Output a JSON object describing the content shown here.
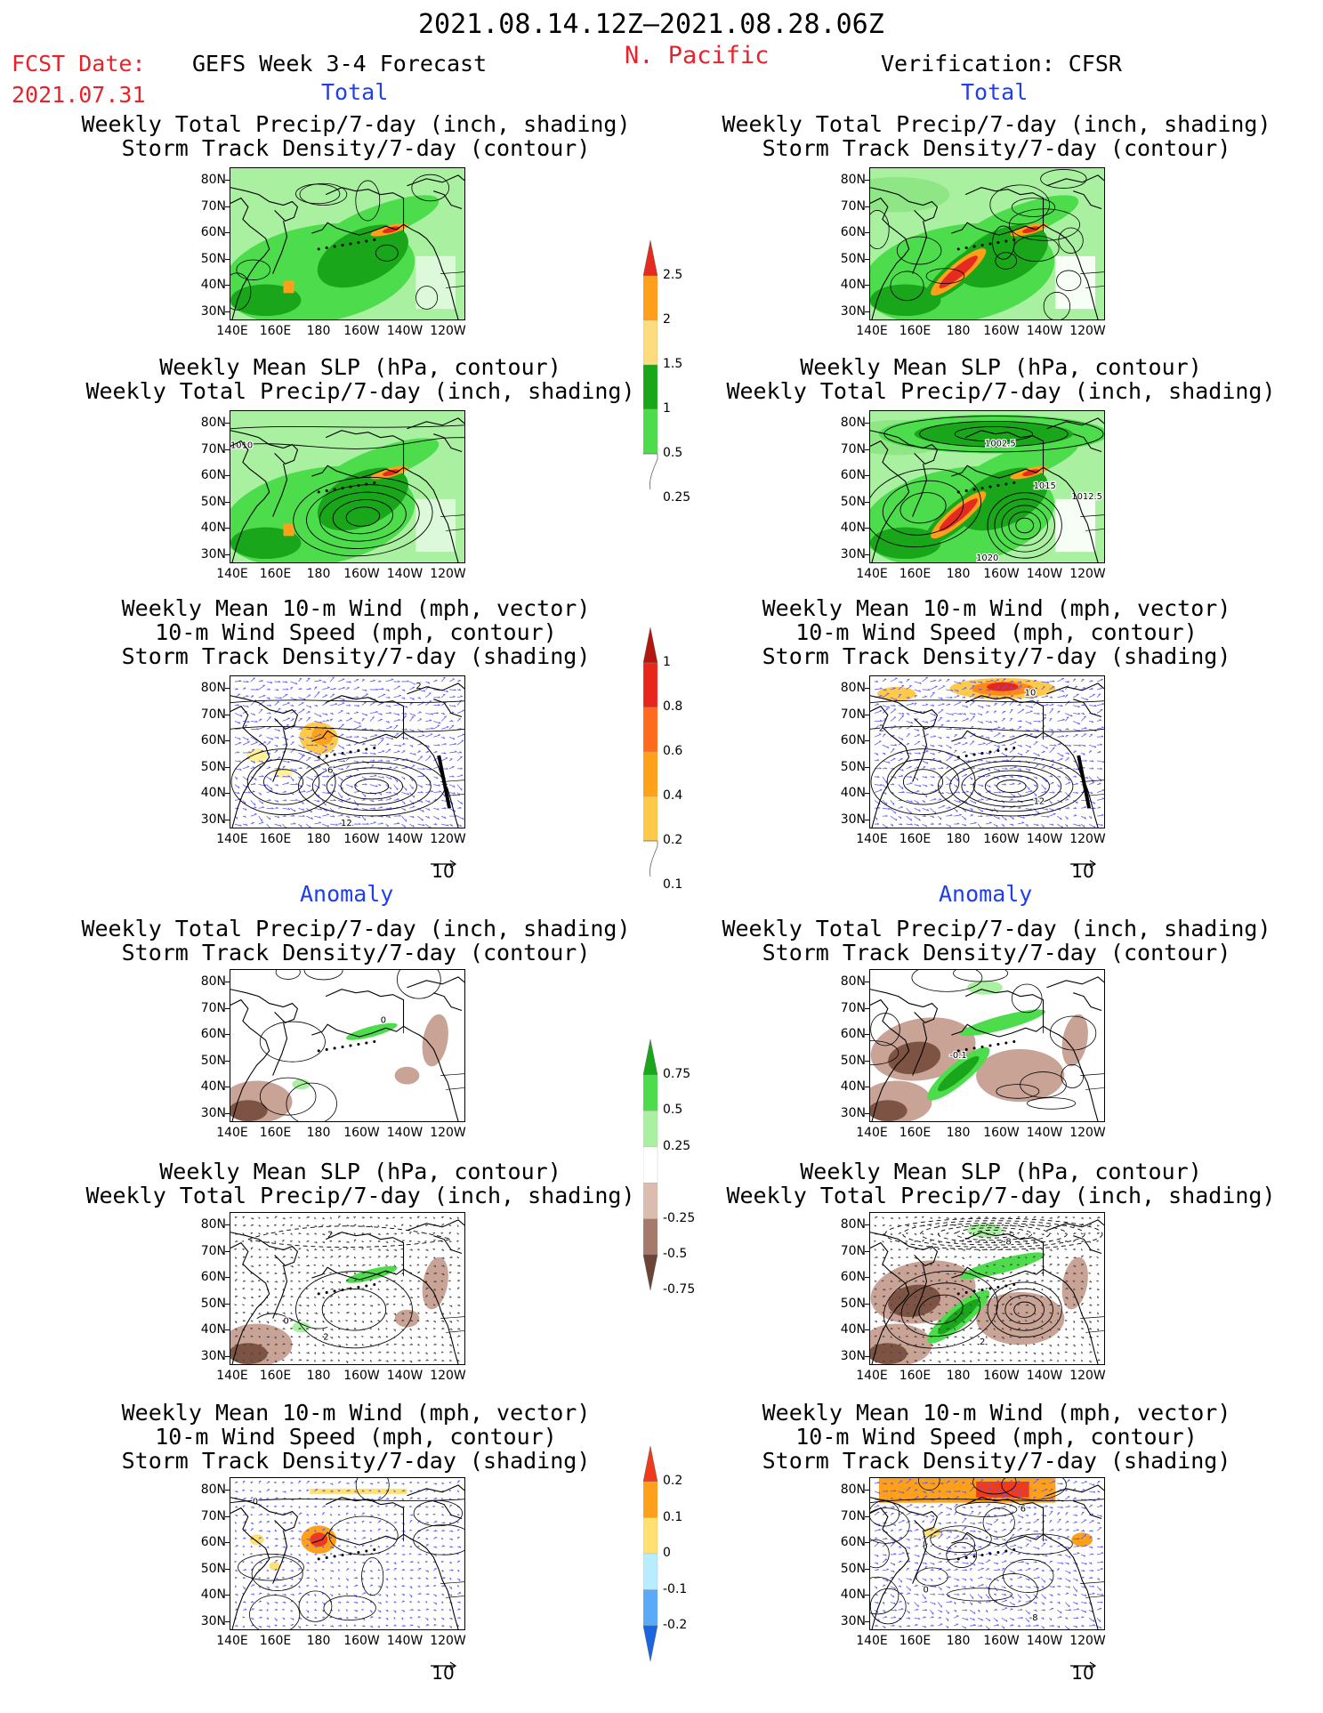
{
  "header": {
    "period": "2021.08.14.12Z–2021.08.28.06Z",
    "region": "N. Pacific",
    "fcst_label": "FCST Date:",
    "fcst_date": "2021.07.31",
    "left_title": "GEFS Week 3-4 Forecast",
    "right_title": "Verification: CFSR"
  },
  "sections": {
    "total": "Total",
    "anomaly": "Anomaly"
  },
  "rows": [
    {
      "title": "Weekly Total Precip/7-day (inch, shading)\nStorm Track Density/7-day (contour)",
      "kind": "precip"
    },
    {
      "title": "Weekly Mean SLP (hPa, contour)\nWeekly Total Precip/7-day (inch, shading)",
      "kind": "slp"
    },
    {
      "title": "Weekly Mean 10-m Wind (mph, vector)\n10-m Wind Speed (mph, contour)\nStorm Track Density/7-day (shading)",
      "kind": "wind"
    },
    {
      "title": "Weekly Total Precip/7-day (inch, shading)\nStorm Track Density/7-day (contour)",
      "kind": "precip_anom"
    },
    {
      "title": "Weekly Mean SLP (hPa, contour)\nWeekly Total Precip/7-day (inch, shading)",
      "kind": "slp_anom"
    },
    {
      "title": "Weekly Mean 10-m Wind (mph, vector)\n10-m Wind Speed (mph, contour)\nStorm Track Density/7-day (shading)",
      "kind": "wind_anom"
    }
  ],
  "axes": {
    "lat_ticks": [
      "80N",
      "70N",
      "60N",
      "50N",
      "40N",
      "30N"
    ],
    "lon_ticks": [
      "140E",
      "160E",
      "180",
      "160W",
      "140W",
      "120W"
    ]
  },
  "contour_labels": {
    "slp_left": [
      "1010"
    ],
    "slp_right": [
      "1002.5",
      "1015",
      "1012.5",
      "1020"
    ],
    "wind_left": [
      "2",
      "6",
      "12"
    ],
    "wind_right": [
      "10",
      "12",
      "2"
    ],
    "precip_anom_left": [
      "0"
    ],
    "precip_anom_right": [
      "-0.1"
    ],
    "slp_anom_left": [
      "2",
      "0",
      "2"
    ],
    "slp_anom_right": [
      "-8",
      "2"
    ],
    "wind_anom_left": [
      "0"
    ],
    "wind_anom_right": [
      "0",
      "6",
      "-8"
    ]
  },
  "vector_reference": "10",
  "colorbars": {
    "precip": {
      "labels": [
        "2.5",
        "2",
        "1.5",
        "1",
        "0.5",
        "0.25"
      ],
      "colors": [
        "#e52a1f",
        "#ff9f1a",
        "#fddc7d",
        "#1aa61a",
        "#4cdc4c",
        "#a9f0a0"
      ]
    },
    "density": {
      "labels": [
        "1",
        "0.8",
        "0.6",
        "0.4",
        "0.2",
        "0.1"
      ],
      "colors": [
        "#b3160c",
        "#e8271c",
        "#ff6a1c",
        "#ffa21a",
        "#ffc94a",
        "#fff09a"
      ]
    },
    "precip_anom": {
      "labels": [
        "0.75",
        "0.5",
        "0.25",
        "-0.25",
        "-0.5",
        "-0.75"
      ],
      "colors": [
        "#1aa61a",
        "#4cdc4c",
        "#a9f0a0",
        "#ffffff",
        "#dbbdb0",
        "#a57a6a",
        "#6b4436"
      ]
    },
    "density_anom": {
      "labels": [
        "0.2",
        "0.1",
        "0",
        "-0.1",
        "-0.2"
      ],
      "colors": [
        "#f03a1c",
        "#ffa01a",
        "#ffe070",
        "#b8ecff",
        "#5aaaf8",
        "#1a66e0"
      ]
    }
  },
  "colors": {
    "precip_light": "#a9f0a0",
    "precip_mid": "#4cdc4c",
    "precip_dark": "#1aa61a",
    "precip_high": "#ff9f1a",
    "precip_max": "#e52a1f",
    "dry_anom": "#c9a396",
    "dry_anom_dark": "#7d5443",
    "wind_vector": "#5a5aff",
    "density_low": "#ffc94a",
    "density_high": "#e8271c"
  }
}
